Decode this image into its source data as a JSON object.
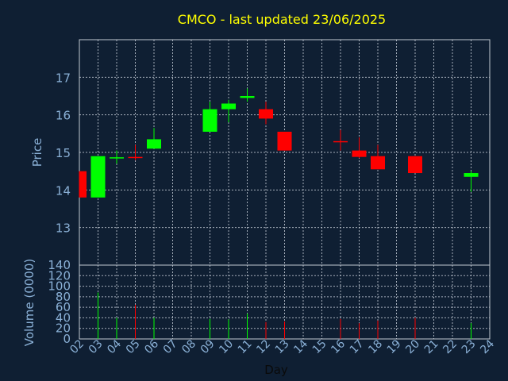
{
  "chart_data": {
    "type": "candlestick",
    "title": "CMCO - last updated 23/06/2025",
    "xlabel": "Day",
    "ylabel_price": "Price",
    "ylabel_volume": "Volume (0000)",
    "x_ticks": [
      "02",
      "03",
      "04",
      "05",
      "06",
      "07",
      "08",
      "09",
      "10",
      "11",
      "12",
      "13",
      "14",
      "15",
      "16",
      "17",
      "18",
      "19",
      "20",
      "21",
      "22",
      "23",
      "24"
    ],
    "price_ticks": [
      13,
      14,
      15,
      16,
      17
    ],
    "price_range": [
      12.0,
      18.0
    ],
    "volume_ticks": [
      0,
      20,
      40,
      60,
      80,
      100,
      120,
      140
    ],
    "volume_range": [
      0,
      140
    ],
    "colors": {
      "up": "#00ff00",
      "down": "#ff0000",
      "title": "#ffff00",
      "background": "#0f1f33",
      "tick_text": "#8ab0d6"
    },
    "candles": [
      {
        "day": "02",
        "open": 14.5,
        "high": 14.5,
        "low": 13.8,
        "close": 13.8,
        "volume": 0
      },
      {
        "day": "03",
        "open": 13.8,
        "high": 14.9,
        "low": 13.8,
        "close": 14.9,
        "volume": 88
      },
      {
        "day": "04",
        "open": 14.85,
        "high": 15.05,
        "low": 14.7,
        "close": 14.87,
        "volume": 40
      },
      {
        "day": "05",
        "open": 14.88,
        "high": 15.2,
        "low": 14.8,
        "close": 14.86,
        "volume": 65
      },
      {
        "day": "06",
        "open": 15.1,
        "high": 15.65,
        "low": 15.1,
        "close": 15.35,
        "volume": 40
      },
      {
        "day": "09",
        "open": 15.55,
        "high": 16.35,
        "low": 15.55,
        "close": 16.15,
        "volume": 38
      },
      {
        "day": "10",
        "open": 16.15,
        "high": 16.4,
        "low": 15.8,
        "close": 16.3,
        "volume": 37
      },
      {
        "day": "11",
        "open": 16.45,
        "high": 16.7,
        "low": 16.35,
        "close": 16.5,
        "volume": 48
      },
      {
        "day": "12",
        "open": 16.15,
        "high": 16.35,
        "low": 15.75,
        "close": 15.9,
        "volume": 32
      },
      {
        "day": "13",
        "open": 15.55,
        "high": 15.55,
        "low": 15.05,
        "close": 15.05,
        "volume": 33
      },
      {
        "day": "16",
        "open": 15.3,
        "high": 15.6,
        "low": 15.05,
        "close": 15.28,
        "volume": 38
      },
      {
        "day": "17",
        "open": 15.05,
        "high": 15.4,
        "low": 14.85,
        "close": 14.88,
        "volume": 30
      },
      {
        "day": "18",
        "open": 14.9,
        "high": 15.2,
        "low": 14.55,
        "close": 14.55,
        "volume": 35
      },
      {
        "day": "20",
        "open": 14.9,
        "high": 14.9,
        "low": 14.45,
        "close": 14.45,
        "volume": 40
      },
      {
        "day": "23",
        "open": 14.35,
        "high": 14.5,
        "low": 13.95,
        "close": 14.45,
        "volume": 30
      }
    ]
  }
}
